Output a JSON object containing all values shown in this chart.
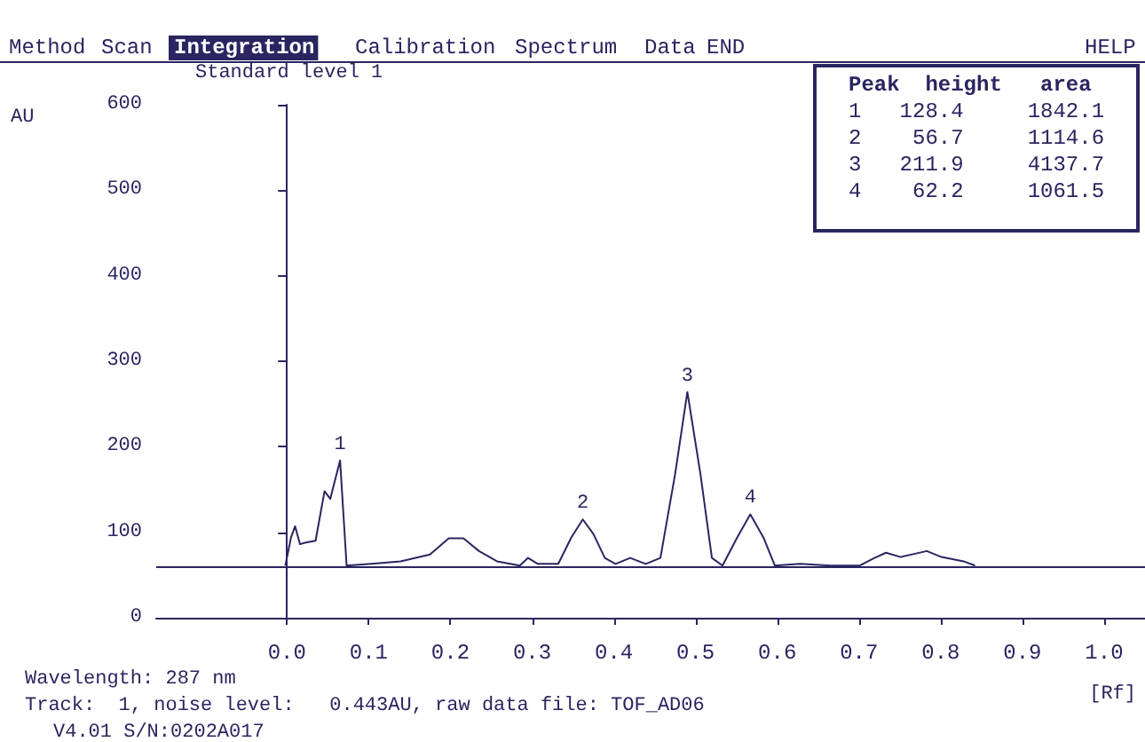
{
  "chart_data": {
    "type": "line",
    "title": "Standard level 1",
    "xlabel": "[Rf]",
    "ylabel": "AU",
    "x": [
      -0.002,
      0.005,
      0.01,
      0.016,
      0.023,
      0.035,
      0.046,
      0.053,
      0.065,
      0.073,
      0.103,
      0.139,
      0.175,
      0.198,
      0.216,
      0.235,
      0.257,
      0.285,
      0.295,
      0.307,
      0.332,
      0.348,
      0.362,
      0.375,
      0.389,
      0.402,
      0.42,
      0.439,
      0.457,
      0.475,
      0.49,
      0.506,
      0.52,
      0.533,
      0.551,
      0.567,
      0.583,
      0.597,
      0.628,
      0.665,
      0.701,
      0.719,
      0.733,
      0.751,
      0.783,
      0.801,
      0.828,
      0.842
    ],
    "series": [
      {
        "color": "#2a2560",
        "values": [
          61,
          94,
          107,
          86,
          88,
          90,
          148,
          139,
          184,
          61,
          63,
          66,
          74,
          93,
          93,
          78,
          66,
          61,
          70,
          63,
          63,
          94,
          115,
          98,
          70,
          63,
          70,
          63,
          70,
          168,
          264,
          168,
          70,
          61,
          94,
          121,
          94,
          61,
          63,
          61,
          61,
          70,
          76,
          71,
          78,
          71,
          66,
          61
        ]
      }
    ],
    "xlim": [
      -0.16,
      1.05
    ],
    "xticks": [
      {
        "value": 0,
        "label": "0.0"
      },
      {
        "value": 0.1,
        "label": "0.1"
      },
      {
        "value": 0.2,
        "label": "0.2"
      },
      {
        "value": 0.3,
        "label": "0.3"
      },
      {
        "value": 0.4,
        "label": "0.4"
      },
      {
        "value": 0.5,
        "label": "0.5"
      },
      {
        "value": 0.6,
        "label": "0.6"
      },
      {
        "value": 0.7,
        "label": "0.7"
      },
      {
        "value": 0.8,
        "label": "0.8"
      },
      {
        "value": 0.9,
        "label": "0.9"
      },
      {
        "value": 1,
        "label": "1.0"
      }
    ],
    "ylim": [
      0,
      600
    ],
    "yticks": [
      0,
      100,
      200,
      300,
      400,
      500,
      600
    ],
    "ref_lines": [
      {
        "axis": "y",
        "value": 60,
        "label": null,
        "color": "#2a2560"
      }
    ],
    "grid": false,
    "marker": "none",
    "line_style": "solid",
    "annotations": [
      {
        "text": "1",
        "x": 0.065,
        "y": 184
      },
      {
        "text": "2",
        "x": 0.362,
        "y": 115
      },
      {
        "text": "3",
        "x": 0.49,
        "y": 264
      },
      {
        "text": "4",
        "x": 0.567,
        "y": 121
      },
      "Method",
      "Scan",
      "Integration",
      "Calibration",
      "Spectrum",
      "Data",
      "END",
      "HELP",
      "Peak  height   area",
      "1   128.4     1842.1",
      "2    56.7     1114.6",
      "3   211.9     4137.7",
      "4    62.2     1061.5",
      "Wavelength: 287 nm",
      "Track:  1, noise level:   0.443AU, raw data file: TOF_AD06",
      "V4.01 S/N:0202A017"
    ]
  }
}
